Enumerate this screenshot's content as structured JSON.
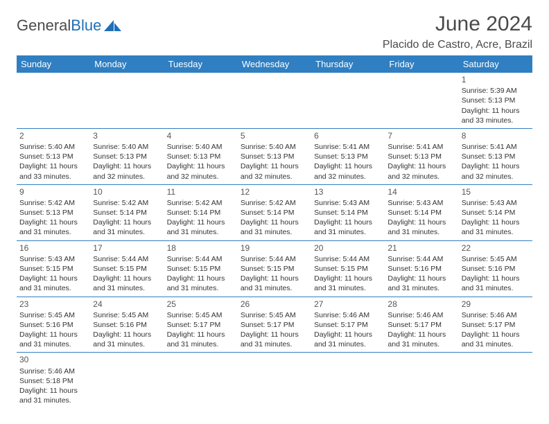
{
  "logo": {
    "text1": "General",
    "text2": "Blue"
  },
  "title": "June 2024",
  "location": "Placido de Castro, Acre, Brazil",
  "header_bg": "#2f7fc2",
  "header_fg": "#ffffff",
  "border_color": "#2f7fc2",
  "days_of_week": [
    "Sunday",
    "Monday",
    "Tuesday",
    "Wednesday",
    "Thursday",
    "Friday",
    "Saturday"
  ],
  "weeks": [
    [
      null,
      null,
      null,
      null,
      null,
      null,
      {
        "n": "1",
        "sr": "Sunrise: 5:39 AM",
        "ss": "Sunset: 5:13 PM",
        "dl": "Daylight: 11 hours and 33 minutes."
      }
    ],
    [
      {
        "n": "2",
        "sr": "Sunrise: 5:40 AM",
        "ss": "Sunset: 5:13 PM",
        "dl": "Daylight: 11 hours and 33 minutes."
      },
      {
        "n": "3",
        "sr": "Sunrise: 5:40 AM",
        "ss": "Sunset: 5:13 PM",
        "dl": "Daylight: 11 hours and 32 minutes."
      },
      {
        "n": "4",
        "sr": "Sunrise: 5:40 AM",
        "ss": "Sunset: 5:13 PM",
        "dl": "Daylight: 11 hours and 32 minutes."
      },
      {
        "n": "5",
        "sr": "Sunrise: 5:40 AM",
        "ss": "Sunset: 5:13 PM",
        "dl": "Daylight: 11 hours and 32 minutes."
      },
      {
        "n": "6",
        "sr": "Sunrise: 5:41 AM",
        "ss": "Sunset: 5:13 PM",
        "dl": "Daylight: 11 hours and 32 minutes."
      },
      {
        "n": "7",
        "sr": "Sunrise: 5:41 AM",
        "ss": "Sunset: 5:13 PM",
        "dl": "Daylight: 11 hours and 32 minutes."
      },
      {
        "n": "8",
        "sr": "Sunrise: 5:41 AM",
        "ss": "Sunset: 5:13 PM",
        "dl": "Daylight: 11 hours and 32 minutes."
      }
    ],
    [
      {
        "n": "9",
        "sr": "Sunrise: 5:42 AM",
        "ss": "Sunset: 5:13 PM",
        "dl": "Daylight: 11 hours and 31 minutes."
      },
      {
        "n": "10",
        "sr": "Sunrise: 5:42 AM",
        "ss": "Sunset: 5:14 PM",
        "dl": "Daylight: 11 hours and 31 minutes."
      },
      {
        "n": "11",
        "sr": "Sunrise: 5:42 AM",
        "ss": "Sunset: 5:14 PM",
        "dl": "Daylight: 11 hours and 31 minutes."
      },
      {
        "n": "12",
        "sr": "Sunrise: 5:42 AM",
        "ss": "Sunset: 5:14 PM",
        "dl": "Daylight: 11 hours and 31 minutes."
      },
      {
        "n": "13",
        "sr": "Sunrise: 5:43 AM",
        "ss": "Sunset: 5:14 PM",
        "dl": "Daylight: 11 hours and 31 minutes."
      },
      {
        "n": "14",
        "sr": "Sunrise: 5:43 AM",
        "ss": "Sunset: 5:14 PM",
        "dl": "Daylight: 11 hours and 31 minutes."
      },
      {
        "n": "15",
        "sr": "Sunrise: 5:43 AM",
        "ss": "Sunset: 5:14 PM",
        "dl": "Daylight: 11 hours and 31 minutes."
      }
    ],
    [
      {
        "n": "16",
        "sr": "Sunrise: 5:43 AM",
        "ss": "Sunset: 5:15 PM",
        "dl": "Daylight: 11 hours and 31 minutes."
      },
      {
        "n": "17",
        "sr": "Sunrise: 5:44 AM",
        "ss": "Sunset: 5:15 PM",
        "dl": "Daylight: 11 hours and 31 minutes."
      },
      {
        "n": "18",
        "sr": "Sunrise: 5:44 AM",
        "ss": "Sunset: 5:15 PM",
        "dl": "Daylight: 11 hours and 31 minutes."
      },
      {
        "n": "19",
        "sr": "Sunrise: 5:44 AM",
        "ss": "Sunset: 5:15 PM",
        "dl": "Daylight: 11 hours and 31 minutes."
      },
      {
        "n": "20",
        "sr": "Sunrise: 5:44 AM",
        "ss": "Sunset: 5:15 PM",
        "dl": "Daylight: 11 hours and 31 minutes."
      },
      {
        "n": "21",
        "sr": "Sunrise: 5:44 AM",
        "ss": "Sunset: 5:16 PM",
        "dl": "Daylight: 11 hours and 31 minutes."
      },
      {
        "n": "22",
        "sr": "Sunrise: 5:45 AM",
        "ss": "Sunset: 5:16 PM",
        "dl": "Daylight: 11 hours and 31 minutes."
      }
    ],
    [
      {
        "n": "23",
        "sr": "Sunrise: 5:45 AM",
        "ss": "Sunset: 5:16 PM",
        "dl": "Daylight: 11 hours and 31 minutes."
      },
      {
        "n": "24",
        "sr": "Sunrise: 5:45 AM",
        "ss": "Sunset: 5:16 PM",
        "dl": "Daylight: 11 hours and 31 minutes."
      },
      {
        "n": "25",
        "sr": "Sunrise: 5:45 AM",
        "ss": "Sunset: 5:17 PM",
        "dl": "Daylight: 11 hours and 31 minutes."
      },
      {
        "n": "26",
        "sr": "Sunrise: 5:45 AM",
        "ss": "Sunset: 5:17 PM",
        "dl": "Daylight: 11 hours and 31 minutes."
      },
      {
        "n": "27",
        "sr": "Sunrise: 5:46 AM",
        "ss": "Sunset: 5:17 PM",
        "dl": "Daylight: 11 hours and 31 minutes."
      },
      {
        "n": "28",
        "sr": "Sunrise: 5:46 AM",
        "ss": "Sunset: 5:17 PM",
        "dl": "Daylight: 11 hours and 31 minutes."
      },
      {
        "n": "29",
        "sr": "Sunrise: 5:46 AM",
        "ss": "Sunset: 5:17 PM",
        "dl": "Daylight: 11 hours and 31 minutes."
      }
    ],
    [
      {
        "n": "30",
        "sr": "Sunrise: 5:46 AM",
        "ss": "Sunset: 5:18 PM",
        "dl": "Daylight: 11 hours and 31 minutes."
      },
      null,
      null,
      null,
      null,
      null,
      null
    ]
  ]
}
